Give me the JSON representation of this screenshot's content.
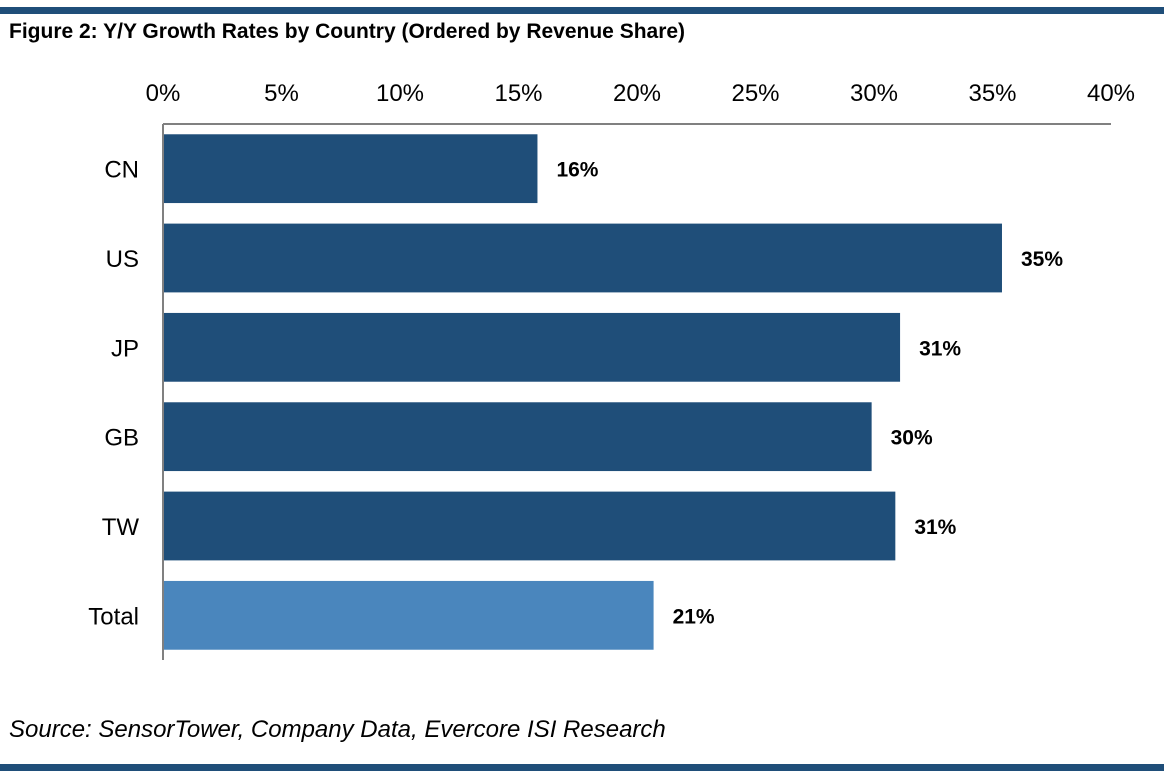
{
  "figure": {
    "title": "Figure 2: Y/Y Growth Rates by Country (Ordered by Revenue Share)",
    "source": "Source: SensorTower, Company Data, Evercore ISI Research"
  },
  "colors": {
    "rule": "#1f4e79",
    "bar_country": "#1f4e79",
    "bar_total": "#4a86bd",
    "axis": "#808080"
  },
  "chart_data": {
    "type": "bar",
    "orientation": "horizontal",
    "categories": [
      "CN",
      "US",
      "JP",
      "GB",
      "TW",
      "Total"
    ],
    "values": [
      15.8,
      35.4,
      31.1,
      29.9,
      30.9,
      20.7
    ],
    "value_labels": [
      "16%",
      "35%",
      "31%",
      "30%",
      "31%",
      "21%"
    ],
    "xlim": [
      0,
      40
    ],
    "x_ticks": [
      0,
      5,
      10,
      15,
      20,
      25,
      30,
      35,
      40
    ],
    "x_tick_labels": [
      "0%",
      "5%",
      "10%",
      "15%",
      "20%",
      "25%",
      "30%",
      "35%",
      "40%"
    ],
    "x_axis_position": "top",
    "highlight_category": "Total",
    "grid": false,
    "legend": false
  }
}
